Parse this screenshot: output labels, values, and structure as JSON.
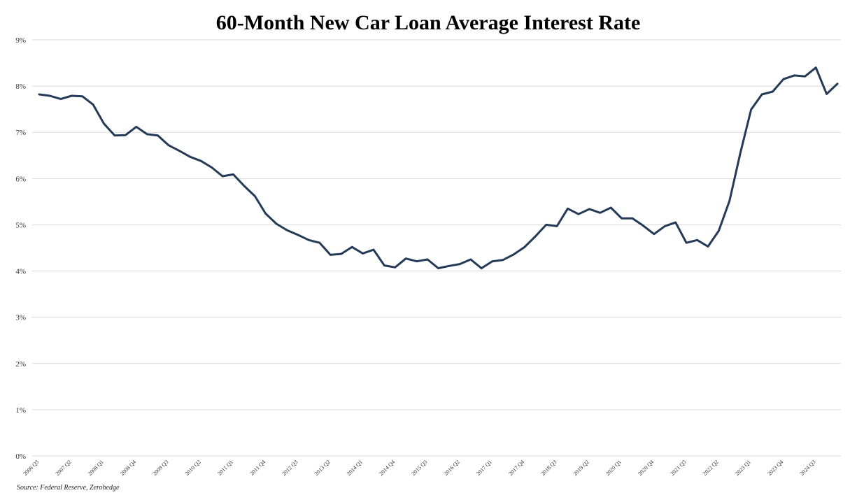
{
  "chart_data": {
    "type": "line",
    "title": "60-Month New Car Loan Average Interest Rate",
    "xlabel": "",
    "ylabel": "",
    "ylim": [
      0,
      9
    ],
    "y_ticks": [
      "0%",
      "1%",
      "2%",
      "3%",
      "4%",
      "5%",
      "6%",
      "7%",
      "8%",
      "9%"
    ],
    "grid": "horizontal",
    "legend": "none",
    "x_tick_labels": [
      "2006 Q3",
      "2007 Q2",
      "2008 Q1",
      "2008 Q4",
      "2009 Q3",
      "2010 Q2",
      "2011 Q1",
      "2011 Q4",
      "2012 Q3",
      "2013 Q2",
      "2014 Q1",
      "2014 Q4",
      "2015 Q3",
      "2016 Q2",
      "2017 Q1",
      "2017 Q4",
      "2018 Q3",
      "2019 Q2",
      "2020 Q1",
      "2020 Q4",
      "2021 Q3",
      "2022 Q2",
      "2023 Q1",
      "2023 Q4",
      "2024 Q3"
    ],
    "x_tick_every": 3,
    "source": "Source: Federal Reserve, Zerohedge",
    "colors": {
      "line": "#243a56"
    },
    "series": [
      {
        "values": [
          7.82,
          7.79,
          7.72,
          7.79,
          7.78,
          7.6,
          7.19,
          6.93,
          6.94,
          7.12,
          6.96,
          6.93,
          6.72,
          6.6,
          6.47,
          6.38,
          6.24,
          6.05,
          6.09,
          5.84,
          5.62,
          5.24,
          5.02,
          4.88,
          4.78,
          4.67,
          4.61,
          4.35,
          4.37,
          4.52,
          4.38,
          4.46,
          4.12,
          4.08,
          4.27,
          4.21,
          4.25,
          4.06,
          4.11,
          4.15,
          4.25,
          4.06,
          4.21,
          4.24,
          4.36,
          4.52,
          4.75,
          5.0,
          4.97,
          5.35,
          5.23,
          5.34,
          5.26,
          5.37,
          5.14,
          5.14,
          4.98,
          4.8,
          4.97,
          5.05,
          4.61,
          4.67,
          4.53,
          4.87,
          5.52,
          6.55,
          7.49,
          7.82,
          7.88,
          8.15,
          8.23,
          8.21,
          8.4,
          7.83,
          8.05
        ]
      }
    ]
  }
}
